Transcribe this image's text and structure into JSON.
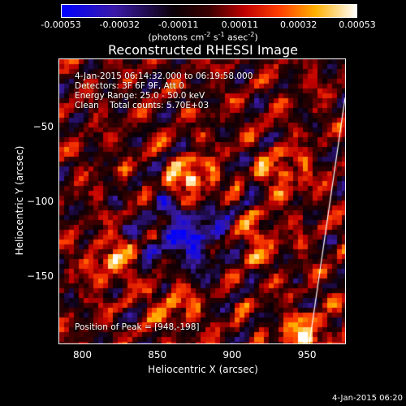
{
  "colorbar": {
    "ticks": [
      "-0.00053",
      "-0.00032",
      "-0.00011",
      "0.00011",
      "0.00032",
      "0.00053"
    ],
    "tick_values": [
      -0.00053,
      -0.00032,
      -0.00011,
      0.00011,
      0.00032,
      0.00053
    ],
    "unit_main": "(photons cm",
    "unit_exp1": "-2",
    "unit_mid": " s",
    "unit_exp2": "-1",
    "unit_mid2": " asec",
    "unit_exp3": "-2",
    "unit_end": ")",
    "colors": [
      "#0000ff",
      "#4b0082",
      "#000000",
      "#8b0000",
      "#ff0000",
      "#ff8c00",
      "#ffd700",
      "#ffffff"
    ]
  },
  "title": "Reconstructed RHESSI Image",
  "annotations": {
    "time_range": "4-Jan-2015 06:14:32.000 to 06:19:58.000",
    "detectors": "Detectors: 3F 6F 9F, Att 0",
    "energy": "Energy Range: 25.0 - 50.0 keV",
    "clean": "Clean    Total counts: 5.70E+03",
    "peak": "Position of Peak = [948,-198]"
  },
  "footer_date": "4-Jan-2015 06:20",
  "chart_data": {
    "type": "heatmap",
    "title": "Reconstructed RHESSI Image",
    "xlabel": "Heliocentric X (arcsec)",
    "ylabel": "Heliocentric Y (arcsec)",
    "xlim": [
      784,
      976
    ],
    "ylim": [
      -196,
      -4
    ],
    "x_ticks": [
      800,
      850,
      900,
      950
    ],
    "y_ticks": [
      -50,
      -100,
      -150
    ],
    "value_range": [
      -0.00053,
      0.00053
    ],
    "peak_position": [
      948,
      -198
    ],
    "bright_sources": [
      {
        "x": 873,
        "y": -86,
        "value": 0.00053
      },
      {
        "x": 950,
        "y": -193,
        "value": 0.0005
      },
      {
        "x": 820,
        "y": -140,
        "value": 0.00035
      },
      {
        "x": 935,
        "y": -80,
        "value": 0.0003
      },
      {
        "x": 860,
        "y": -168,
        "value": 0.0003
      },
      {
        "x": 915,
        "y": -125,
        "value": 0.00028
      }
    ],
    "limb_line": [
      [
        976,
        -30
      ],
      [
        952,
        -196
      ]
    ]
  }
}
